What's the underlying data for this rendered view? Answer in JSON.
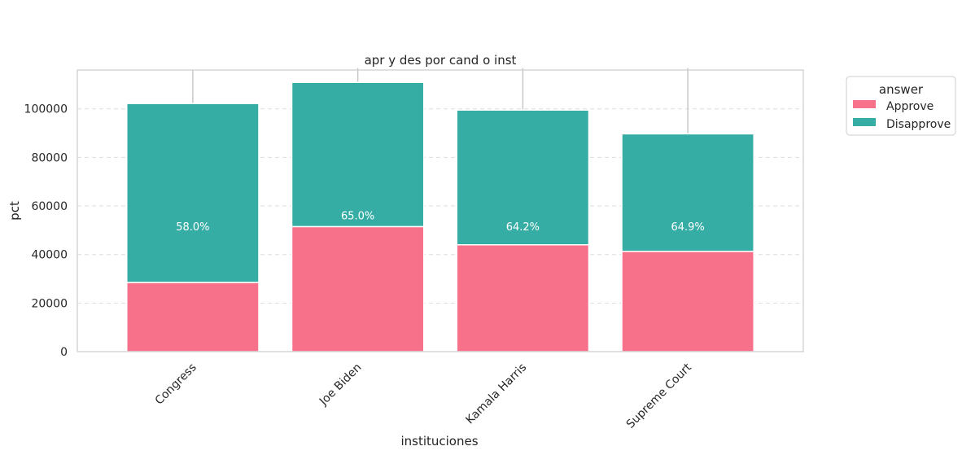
{
  "chart_data": {
    "type": "bar",
    "stacked": true,
    "title": "apr y des por cand o inst",
    "xlabel": "instituciones",
    "ylabel": "pct",
    "categories": [
      "Congress",
      "Joe Biden",
      "Kamala Harris",
      "Supreme Court"
    ],
    "series": [
      {
        "name": "Approve",
        "color": "#f7718a",
        "values": [
          28500,
          51500,
          44000,
          41300
        ]
      },
      {
        "name": "Disapprove",
        "color": "#36ada4",
        "values": [
          73700,
          59400,
          55500,
          48400
        ]
      }
    ],
    "data_labels": [
      "58.0%",
      "65.0%",
      "64.2%",
      "64.9%"
    ],
    "error_bars_top": [
      115800,
      116800,
      116800,
      116800
    ],
    "ylim": [
      0,
      116000
    ],
    "yticks": [
      0,
      20000,
      40000,
      60000,
      80000,
      100000
    ],
    "ytick_labels": [
      "0",
      "20000",
      "40000",
      "60000",
      "80000",
      "100000"
    ],
    "grid": "y-dashed",
    "legend": {
      "title": "answer",
      "position": "outside-top-right"
    }
  }
}
